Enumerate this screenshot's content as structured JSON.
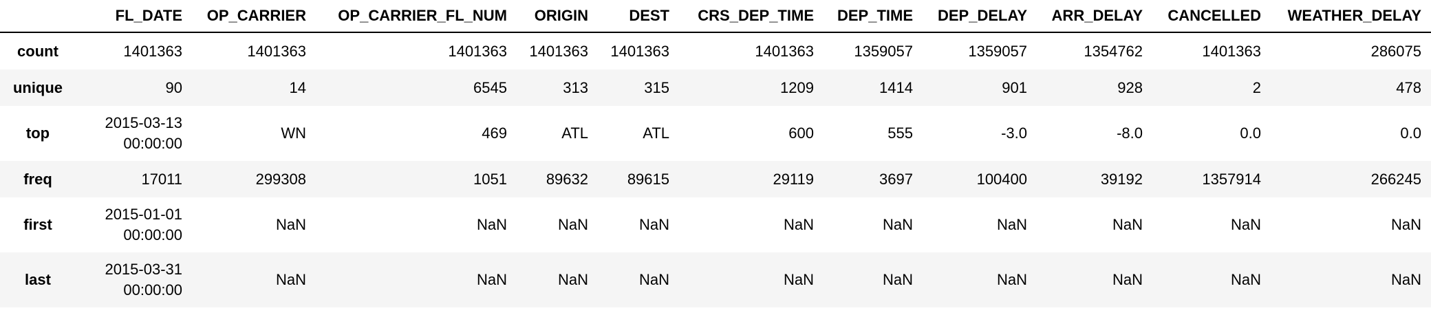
{
  "table": {
    "index_header": "",
    "columns": [
      "FL_DATE",
      "OP_CARRIER",
      "OP_CARRIER_FL_NUM",
      "ORIGIN",
      "DEST",
      "CRS_DEP_TIME",
      "DEP_TIME",
      "DEP_DELAY",
      "ARR_DELAY",
      "CANCELLED",
      "WEATHER_DELAY"
    ],
    "rows": [
      {
        "label": "count",
        "cells": [
          "1401363",
          "1401363",
          "1401363",
          "1401363",
          "1401363",
          "1401363",
          "1359057",
          "1359057",
          "1354762",
          "1401363",
          "286075"
        ]
      },
      {
        "label": "unique",
        "cells": [
          "90",
          "14",
          "6545",
          "313",
          "315",
          "1209",
          "1414",
          "901",
          "928",
          "2",
          "478"
        ]
      },
      {
        "label": "top",
        "cells": [
          "2015-03-13 00:00:00",
          "WN",
          "469",
          "ATL",
          "ATL",
          "600",
          "555",
          "-3.0",
          "-8.0",
          "0.0",
          "0.0"
        ]
      },
      {
        "label": "freq",
        "cells": [
          "17011",
          "299308",
          "1051",
          "89632",
          "89615",
          "29119",
          "3697",
          "100400",
          "39192",
          "1357914",
          "266245"
        ]
      },
      {
        "label": "first",
        "cells": [
          "2015-01-01 00:00:00",
          "NaN",
          "NaN",
          "NaN",
          "NaN",
          "NaN",
          "NaN",
          "NaN",
          "NaN",
          "NaN",
          "NaN"
        ]
      },
      {
        "label": "last",
        "cells": [
          "2015-03-31 00:00:00",
          "NaN",
          "NaN",
          "NaN",
          "NaN",
          "NaN",
          "NaN",
          "NaN",
          "NaN",
          "NaN",
          "NaN"
        ]
      }
    ]
  }
}
